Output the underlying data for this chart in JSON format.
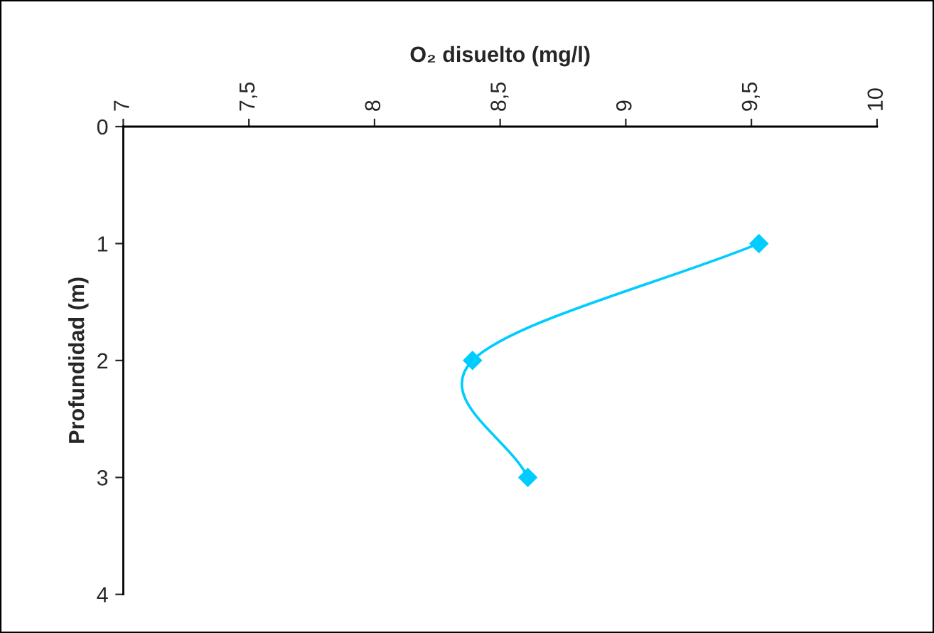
{
  "chart_data": {
    "type": "line",
    "xlabel": "O₂ disuelto (mg/l)",
    "ylabel": "Profundidad (m)",
    "series": [
      {
        "color": "#00ccff",
        "x": [
          9.53,
          8.39,
          8.61
        ],
        "values": [
          1,
          2,
          3
        ]
      }
    ],
    "xlim": [
      7,
      10
    ],
    "xticks": [
      7,
      {
        "value": 7.5,
        "label": "7,5"
      },
      8,
      {
        "value": 8.5,
        "label": "8,5"
      },
      9,
      {
        "value": 9.5,
        "label": "9,5"
      },
      10
    ],
    "ylim": [
      4,
      0
    ],
    "yticks": [
      0,
      1,
      2,
      3,
      4
    ],
    "marker": "diamond",
    "line_style": "solid",
    "grid": false,
    "legend": false
  }
}
